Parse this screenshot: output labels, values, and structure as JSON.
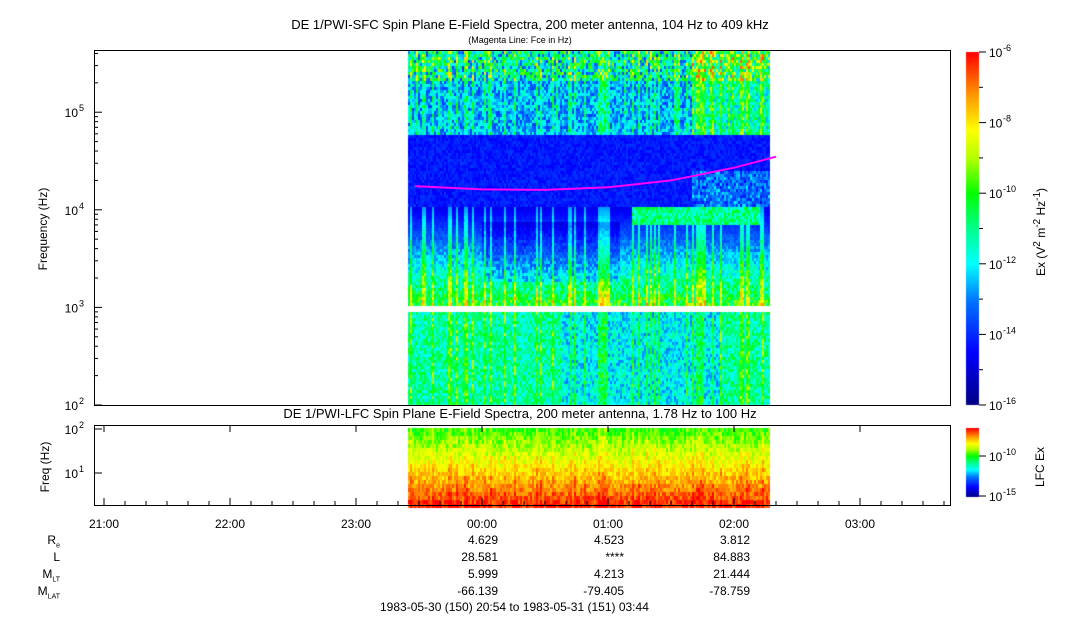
{
  "chart_data": [
    {
      "type": "heatmap",
      "title": "DE 1/PWI-SFC  Spin Plane E-Field Spectra, 200 meter antenna, 104 Hz to 409 kHz",
      "subtitle": "(Magenta Line: Fce in Hz)",
      "ylabel": "Frequency (Hz)",
      "yscale": "log",
      "ylim": [
        100,
        409000
      ],
      "yticks": [
        "10^2",
        "10^3",
        "10^4",
        "10^5"
      ],
      "xlim": [
        "20:54",
        "03:44"
      ],
      "data_time_range": [
        "23:28",
        "02:20"
      ],
      "colorbar": {
        "label": "Ex (V^2 m^-2 Hz^-1)",
        "range": [
          1e-16,
          1e-06
        ],
        "ticks": [
          "10^-6",
          "10^-8",
          "10^-10",
          "10^-12",
          "10^-14",
          "10^-16"
        ]
      },
      "fce_line": {
        "color": "#ff00ff",
        "times": [
          "23:28",
          "00:00",
          "00:30",
          "01:00",
          "01:30",
          "02:00",
          "02:20"
        ],
        "hz": [
          17500,
          16200,
          16000,
          17000,
          20000,
          27000,
          35000
        ]
      }
    },
    {
      "type": "heatmap",
      "title": "DE 1/PWI-LFC  Spin Plane E-Field Spectra, 200 meter antenna, 1.78 Hz to 100 Hz",
      "ylabel": "Freq (Hz)",
      "yscale": "log",
      "ylim": [
        1.78,
        100
      ],
      "yticks": [
        "10^1",
        "10^2"
      ],
      "colorbar": {
        "label": "LFC Ex",
        "ticks": [
          "10^-10",
          "10^-15"
        ]
      }
    }
  ],
  "time_axis": {
    "ticks": [
      "21:00",
      "22:00",
      "23:00",
      "00:00",
      "01:00",
      "02:00",
      "03:00"
    ]
  },
  "ephemeris": {
    "rows": [
      {
        "label": "R",
        "sub": "e",
        "values": [
          "4.629",
          "4.523",
          "3.812"
        ]
      },
      {
        "label": "L",
        "sub": "",
        "values": [
          "28.581",
          "****",
          "84.883"
        ]
      },
      {
        "label": "M",
        "sub": "LT",
        "values": [
          "5.999",
          "4.213",
          "21.444"
        ]
      },
      {
        "label": "M",
        "sub": "LAT",
        "values": [
          "-66.139",
          "-79.405",
          "-78.759"
        ]
      }
    ]
  },
  "date_range": "1983-05-30 (150) 20:54 to 1983-05-31 (151) 03:44"
}
